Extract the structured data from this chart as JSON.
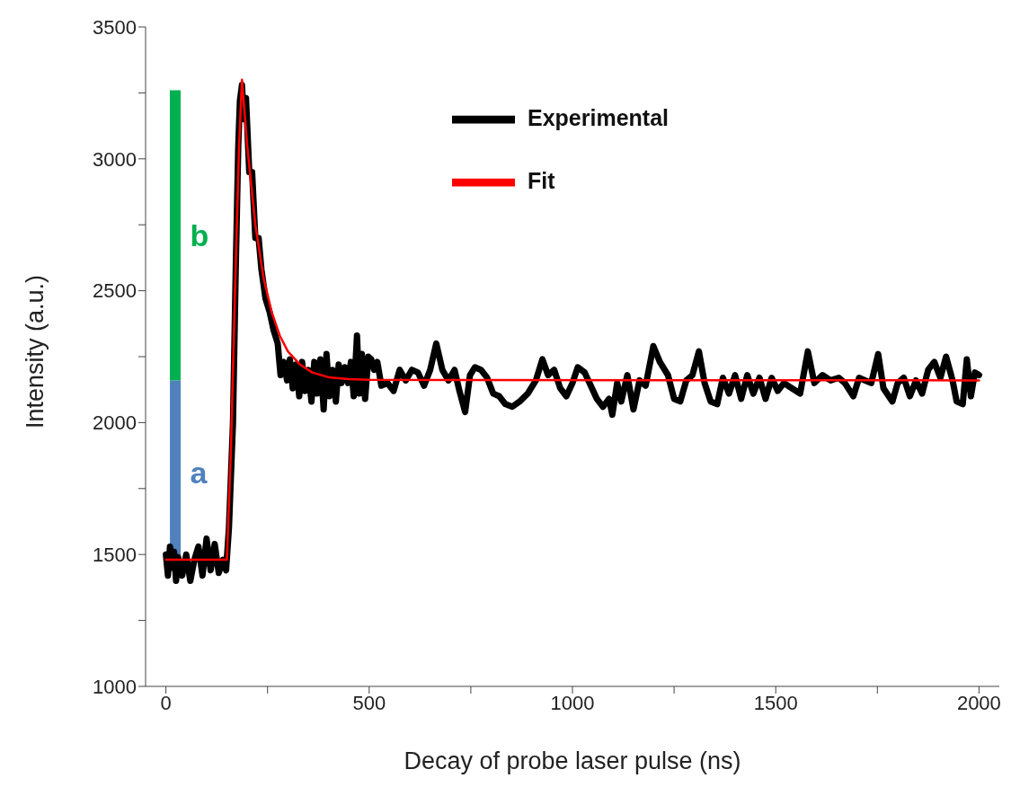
{
  "chart_data": {
    "type": "line",
    "xlabel": "Decay of probe laser pulse (ns)",
    "ylabel": "Intensity (a.u.)",
    "xlim": [
      -50,
      2050
    ],
    "ylim": [
      1000,
      3500
    ],
    "xticks": [
      0,
      {
        "value": 250,
        "label": null
      },
      500,
      {
        "value": 750,
        "label": null
      },
      1000,
      {
        "value": 1250,
        "label": null
      },
      1500,
      {
        "value": 1750,
        "label": null
      },
      2000
    ],
    "yticks": [
      1000,
      {
        "value": 1250,
        "label": null
      },
      1500,
      {
        "value": 1750,
        "label": null
      },
      2000,
      {
        "value": 2250,
        "label": null
      },
      2500,
      {
        "value": 2750,
        "label": null
      },
      3000,
      {
        "value": 3250,
        "label": null
      },
      3500
    ],
    "legend": "top right",
    "line_style": "solid",
    "series": [
      {
        "name": "a",
        "type": "bar",
        "color": "#4f81bd",
        "x": [
          23
        ],
        "base": [
          1460
        ],
        "values": [
          700
        ]
      },
      {
        "name": "b",
        "type": "bar",
        "color": "#00b050",
        "x": [
          23
        ],
        "base": [
          2160
        ],
        "values": [
          1100
        ]
      },
      {
        "name": "Experimental",
        "color": "#000000",
        "x": [
          0,
          5,
          10,
          15,
          20,
          25,
          30,
          40,
          50,
          60,
          70,
          80,
          90,
          100,
          110,
          120,
          130,
          140,
          148,
          155,
          165,
          172,
          178,
          182,
          187,
          192,
          197,
          205,
          212,
          220,
          228,
          235,
          245,
          255,
          265,
          275,
          282,
          290,
          298,
          305,
          312,
          320,
          328,
          335,
          342,
          350,
          358,
          365,
          372,
          380,
          388,
          395,
          402,
          410,
          418,
          425,
          432,
          440,
          448,
          455,
          462,
          470,
          476,
          482,
          490,
          498,
          505,
          512,
          520,
          530,
          545,
          560,
          575,
          590,
          605,
          620,
          635,
          650,
          665,
          680,
          695,
          710,
          722,
          736,
          748,
          760,
          775,
          790,
          805,
          820,
          835,
          852,
          870,
          890,
          910,
          926,
          940,
          955,
          970,
          985,
          1000,
          1013,
          1030,
          1045,
          1060,
          1075,
          1090,
          1098,
          1110,
          1120,
          1135,
          1150,
          1165,
          1180,
          1199,
          1215,
          1235,
          1250,
          1265,
          1280,
          1295,
          1311,
          1325,
          1340,
          1356,
          1370,
          1385,
          1400,
          1415,
          1430,
          1445,
          1460,
          1475,
          1490,
          1505,
          1520,
          1540,
          1560,
          1579,
          1595,
          1615,
          1635,
          1655,
          1670,
          1691,
          1705,
          1720,
          1735,
          1752,
          1765,
          1787,
          1800,
          1815,
          1830,
          1845,
          1860,
          1875,
          1890,
          1905,
          1919,
          1935,
          1945,
          1960,
          1970,
          1980,
          1990,
          2000
        ],
        "values": [
          1500,
          1420,
          1530,
          1450,
          1510,
          1400,
          1490,
          1420,
          1500,
          1400,
          1480,
          1530,
          1420,
          1560,
          1440,
          1540,
          1430,
          1480,
          1440,
          1600,
          2000,
          2600,
          3050,
          3220,
          3280,
          3150,
          3230,
          2950,
          2950,
          2700,
          2700,
          2580,
          2470,
          2420,
          2350,
          2300,
          2180,
          2230,
          2160,
          2240,
          2130,
          2220,
          2100,
          2230,
          2120,
          2200,
          2080,
          2230,
          2110,
          2240,
          2050,
          2260,
          2100,
          2200,
          2080,
          2220,
          2150,
          2210,
          2150,
          2230,
          2100,
          2330,
          2110,
          2260,
          2090,
          2250,
          2240,
          2200,
          2230,
          2140,
          2150,
          2120,
          2200,
          2160,
          2200,
          2190,
          2140,
          2200,
          2300,
          2200,
          2160,
          2200,
          2120,
          2040,
          2180,
          2210,
          2200,
          2170,
          2110,
          2100,
          2070,
          2060,
          2080,
          2110,
          2160,
          2240,
          2180,
          2200,
          2130,
          2100,
          2150,
          2210,
          2190,
          2140,
          2090,
          2060,
          2090,
          2030,
          2150,
          2080,
          2180,
          2050,
          2160,
          2140,
          2290,
          2230,
          2180,
          2090,
          2080,
          2160,
          2180,
          2270,
          2150,
          2080,
          2070,
          2170,
          2110,
          2180,
          2090,
          2180,
          2110,
          2170,
          2090,
          2170,
          2120,
          2150,
          2130,
          2110,
          2270,
          2150,
          2180,
          2160,
          2170,
          2150,
          2100,
          2170,
          2160,
          2150,
          2260,
          2130,
          2080,
          2150,
          2170,
          2100,
          2160,
          2110,
          2200,
          2230,
          2170,
          2250,
          2160,
          2080,
          2070,
          2240,
          2100,
          2190,
          2180
        ]
      },
      {
        "name": "Fit",
        "color": "#ff0000",
        "x": [
          0,
          150,
          160,
          170,
          180,
          187,
          200,
          220,
          240,
          260,
          280,
          300,
          330,
          360,
          400,
          450,
          500,
          2000
        ],
        "values": [
          1480,
          1480,
          1900,
          2500,
          3050,
          3300,
          3050,
          2750,
          2550,
          2420,
          2330,
          2270,
          2220,
          2190,
          2172,
          2165,
          2162,
          2160
        ]
      }
    ]
  }
}
